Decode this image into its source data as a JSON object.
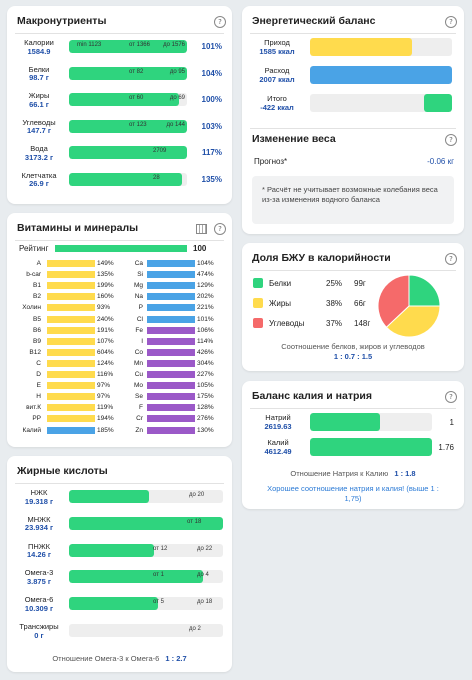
{
  "colors": {
    "green": "#2fd47e",
    "yellow": "#ffdb4d",
    "blue": "#4aa3e6",
    "purple": "#9b59c8",
    "red": "#f56a6a",
    "navy": "#1f4fa8"
  },
  "macro": {
    "title": "Макронутриенты",
    "help": "?",
    "rows": [
      {
        "label": "Калории",
        "value": "1584.9",
        "min": "min 1123",
        "mid": "от 1366",
        "max": "до 1576",
        "fill": 1.0,
        "pct": "101%"
      },
      {
        "label": "Белки",
        "value": "98.7 г",
        "min": "",
        "mid": "от 82",
        "max": "до 95",
        "fill": 1.0,
        "pct": "104%"
      },
      {
        "label": "Жиры",
        "value": "66.1 г",
        "min": "",
        "mid": "от 60",
        "max": "до 69",
        "fill": 0.93,
        "pct": "100%"
      },
      {
        "label": "Углеводы",
        "value": "147.7 г",
        "min": "",
        "mid": "от 123",
        "max": "до 144",
        "fill": 1.0,
        "pct": "103%"
      },
      {
        "label": "Вода",
        "value": "3173.2 г",
        "min": "",
        "mid": "2709",
        "max": "",
        "fill": 1.0,
        "pct": "117%"
      },
      {
        "label": "Клетчатка",
        "value": "26.9 г",
        "min": "",
        "mid": "28",
        "max": "",
        "fill": 0.96,
        "pct": "135%"
      }
    ]
  },
  "vitamins": {
    "title": "Витамины и минералы",
    "rating_label": "Рейтинг",
    "rating_value": "100",
    "rating_fill": 1.0,
    "left": [
      {
        "n": "A",
        "p": "149%",
        "c": "yellow"
      },
      {
        "n": "b-car",
        "p": "135%",
        "c": "yellow"
      },
      {
        "n": "B1",
        "p": "199%",
        "c": "yellow"
      },
      {
        "n": "B2",
        "p": "160%",
        "c": "yellow"
      },
      {
        "n": "Холин",
        "p": "93%",
        "c": "yellow"
      },
      {
        "n": "B5",
        "p": "240%",
        "c": "yellow"
      },
      {
        "n": "B6",
        "p": "191%",
        "c": "yellow"
      },
      {
        "n": "B9",
        "p": "107%",
        "c": "yellow"
      },
      {
        "n": "B12",
        "p": "604%",
        "c": "yellow"
      },
      {
        "n": "C",
        "p": "124%",
        "c": "yellow"
      },
      {
        "n": "D",
        "p": "116%",
        "c": "yellow"
      },
      {
        "n": "E",
        "p": "97%",
        "c": "yellow"
      },
      {
        "n": "H",
        "p": "97%",
        "c": "yellow"
      },
      {
        "n": "вит.К",
        "p": "119%",
        "c": "yellow"
      },
      {
        "n": "PP",
        "p": "194%",
        "c": "yellow"
      },
      {
        "n": "Калий",
        "p": "185%",
        "c": "blue"
      }
    ],
    "right": [
      {
        "n": "Ca",
        "p": "104%",
        "c": "blue"
      },
      {
        "n": "Si",
        "p": "474%",
        "c": "blue"
      },
      {
        "n": "Mg",
        "p": "129%",
        "c": "blue"
      },
      {
        "n": "Na",
        "p": "202%",
        "c": "blue"
      },
      {
        "n": "P",
        "p": "221%",
        "c": "blue"
      },
      {
        "n": "Cl",
        "p": "101%",
        "c": "blue"
      },
      {
        "n": "Fe",
        "p": "106%",
        "c": "purple"
      },
      {
        "n": "I",
        "p": "114%",
        "c": "purple"
      },
      {
        "n": "Co",
        "p": "426%",
        "c": "purple"
      },
      {
        "n": "Mn",
        "p": "304%",
        "c": "purple"
      },
      {
        "n": "Cu",
        "p": "227%",
        "c": "purple"
      },
      {
        "n": "Mo",
        "p": "105%",
        "c": "purple"
      },
      {
        "n": "Se",
        "p": "175%",
        "c": "purple"
      },
      {
        "n": "F",
        "p": "128%",
        "c": "purple"
      },
      {
        "n": "Cr",
        "p": "276%",
        "c": "purple"
      },
      {
        "n": "Zn",
        "p": "130%",
        "c": "purple"
      }
    ]
  },
  "fatty": {
    "title": "Жирные кислоты",
    "rows": [
      {
        "label": "НЖК",
        "value": "19.318 г",
        "mid": "",
        "max": "до 20",
        "fill": 0.52
      },
      {
        "label": "МНЖК",
        "value": "23.934 г",
        "mid": "от 18",
        "max": "",
        "fill": 1.0
      },
      {
        "label": "ПНЖК",
        "value": "14.26 г",
        "mid": "от 12",
        "max": "до 22",
        "fill": 0.55
      },
      {
        "label": "Омега-3",
        "value": "3.875 г",
        "mid": "от 1",
        "max": "до 4",
        "fill": 0.87
      },
      {
        "label": "Омега-6",
        "value": "10.309 г",
        "mid": "от 5",
        "max": "до 18",
        "fill": 0.58
      },
      {
        "label": "Трансжиры",
        "value": "0 г",
        "mid": "",
        "max": "до 2",
        "fill": 0
      }
    ],
    "ratio_label": "Отношение Омега-3 к Омега-6",
    "ratio_value": "1 : 2.7"
  },
  "energy": {
    "title": "Энергетический баланс",
    "rows": [
      {
        "label": "Приход",
        "value": "1585 ккал",
        "color": "yellow",
        "fill": 0.72
      },
      {
        "label": "Расход",
        "value": "2007 ккал",
        "color": "blue",
        "fill": 1.0
      },
      {
        "label": "Итого",
        "value": "-422 ккал",
        "color": "green",
        "fill": 0.2
      }
    ]
  },
  "weight": {
    "title": "Изменение веса",
    "forecast_label": "Прогноз*",
    "forecast_value": "-0.06 кг",
    "note": "* Расчёт не учитывает возможные колебания веса из-за изменения водного баланса"
  },
  "bju": {
    "title": "Доля БЖУ в калорийности",
    "chart_data": {
      "type": "pie",
      "categories": [
        "Белки",
        "Жиры",
        "Углеводы"
      ],
      "values": [
        25,
        38,
        37
      ],
      "grams": [
        "99г",
        "66г",
        "148г"
      ],
      "colors": [
        "#2fd47e",
        "#ffdb4d",
        "#f56a6a"
      ]
    },
    "ratio_label": "Соотношение белков, жиров и углеводов",
    "ratio_value": "1 : 0.7 : 1.5"
  },
  "kna": {
    "title": "Баланс калия и натрия",
    "rows": [
      {
        "label": "Натрий",
        "value": "2619.63",
        "fill": 0.57,
        "num": "1"
      },
      {
        "label": "Калий",
        "value": "4612.49",
        "fill": 1.0,
        "num": "1.76"
      }
    ],
    "ratio_label": "Отношение Натрия к Калию",
    "ratio_value": "1 : 1.8",
    "note": "Хорошее соотношение натрия и калия! (выше 1 : 1,75)"
  }
}
